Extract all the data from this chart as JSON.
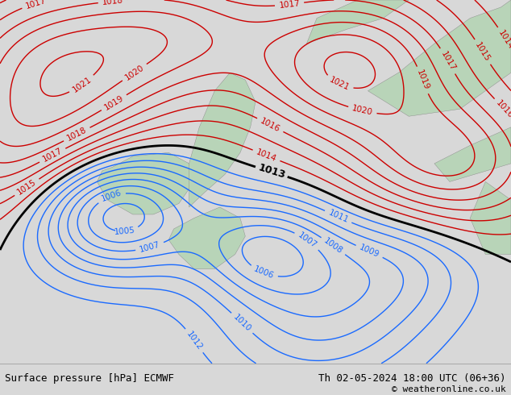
{
  "title_left": "Surface pressure [hPa] ECMWF",
  "title_right": "Th 02-05-2024 18:00 UTC (06+36)",
  "copyright": "© weatheronline.co.uk",
  "bg_color": "#d8d8d8",
  "map_bg": "#d0dce8",
  "land_color": "#b8d4b8",
  "footer_bg": "#ffffff",
  "footer_text_color": "#000000",
  "blue_contour_color": "#1a6aff",
  "red_contour_color": "#cc0000",
  "black_contour_color": "#000000",
  "label_fontsize": 7.5,
  "footer_fontsize": 9,
  "figsize": [
    6.34,
    4.9
  ],
  "dpi": 100
}
